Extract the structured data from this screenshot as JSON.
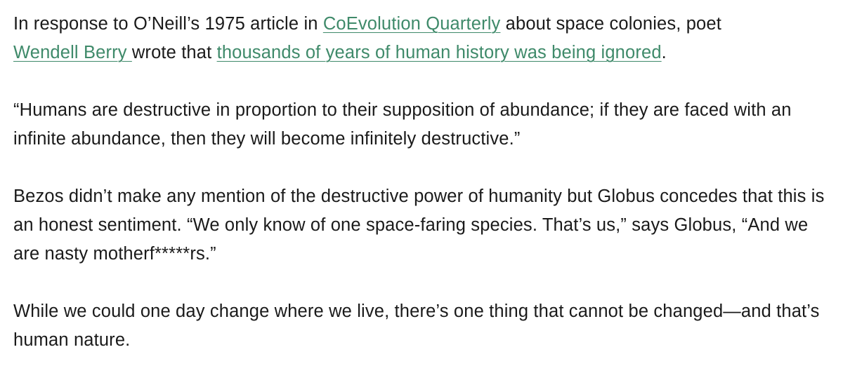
{
  "article": {
    "p1": {
      "t1": "In response to O’Neill’s 1975 article in ",
      "link1": "CoEvolution Quarterly",
      "t2": " about space colonies, poet ",
      "link2": "Wendell Berry ",
      "t3": "wrote that ",
      "link3": "thousands of years of human history was being ignored",
      "t4": "."
    },
    "p2": "“Humans are destructive in proportion to their supposition of abundance; if they are faced with an infinite abundance, then they will become infinitely destructive.”",
    "p3": "Bezos didn’t make any mention of the destructive power of humanity but Globus concedes that this is an honest sentiment. “We only know of one space-faring species. That’s us,” says Globus, “And we are nasty motherf*****rs.”",
    "p4": "While we could one day change where we live, there’s one thing that cannot be changed—and that’s human nature."
  },
  "colors": {
    "link": "#3f8a6a",
    "text": "#1a1a1a"
  }
}
